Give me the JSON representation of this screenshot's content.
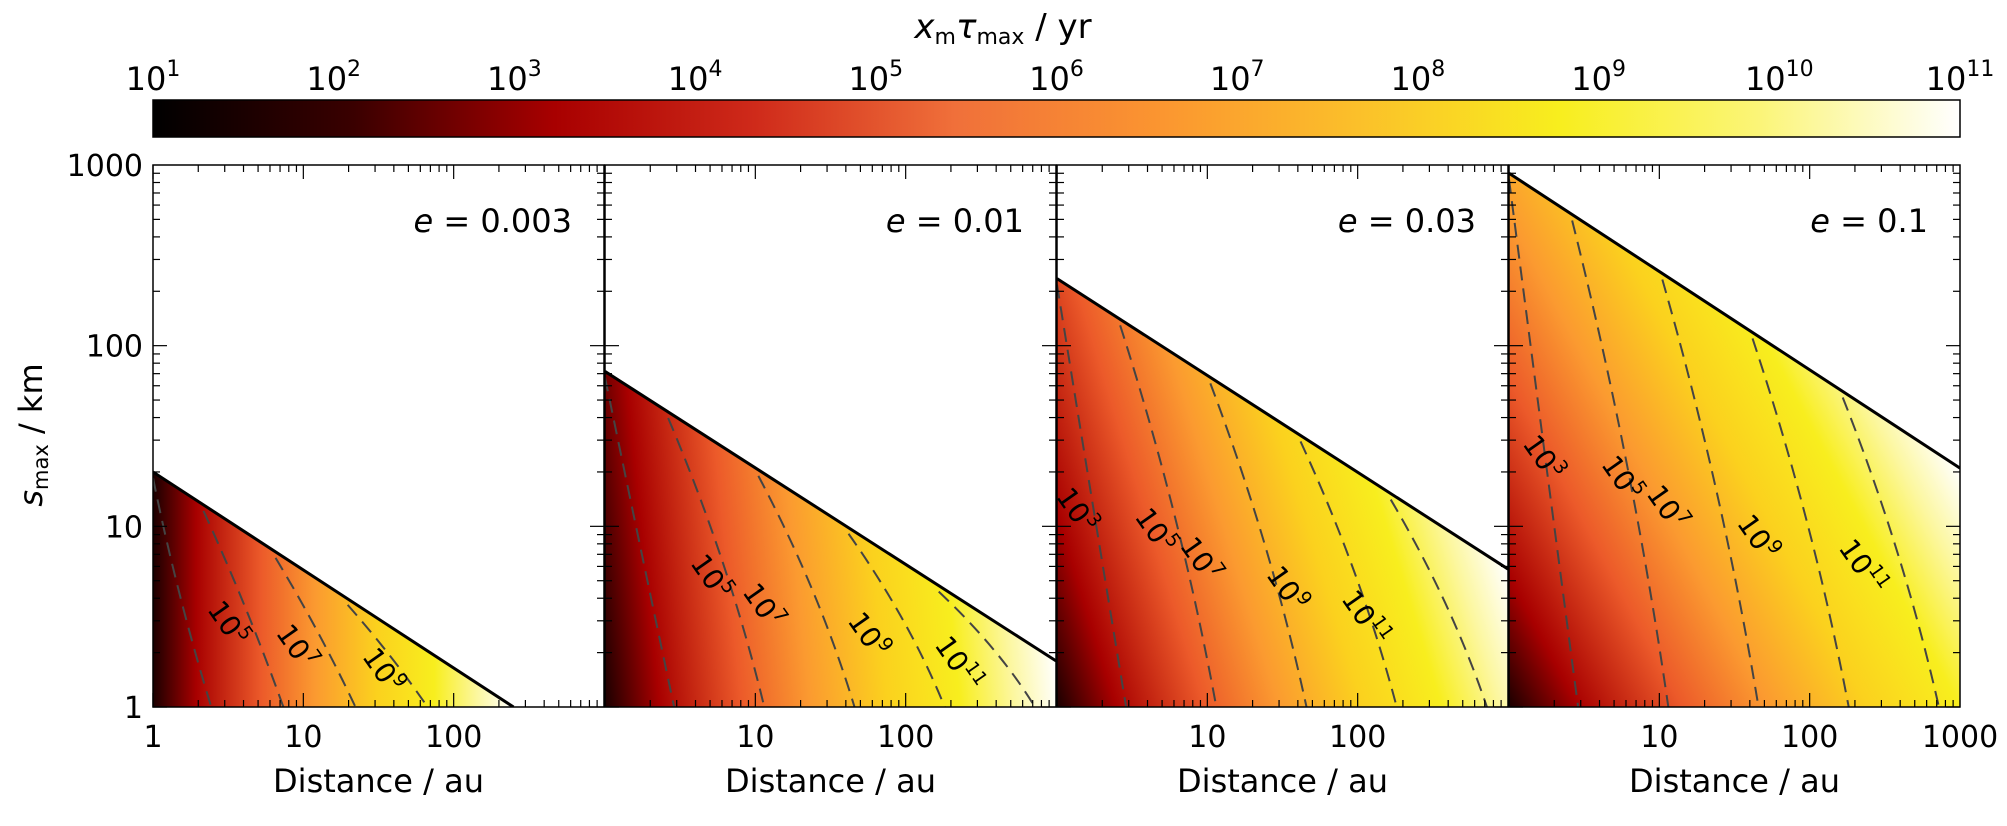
{
  "colorbar": {
    "label_main": "x",
    "label_sub": "m",
    "label_tau": "τ",
    "label_tau_sub": "max",
    "label_units": " / yr",
    "scale": "log",
    "range": [
      10.0,
      100000000000.0
    ],
    "tick_exponents": [
      1,
      2,
      3,
      4,
      5,
      6,
      7,
      8,
      9,
      10,
      11
    ],
    "tick_base": "10",
    "colormap": [
      "#000000",
      "#3a0000",
      "#a80000",
      "#cf2a1a",
      "#f0703a",
      "#fb9530",
      "#fbc02a",
      "#f8ee1e",
      "#fbf578",
      "#ffffff"
    ]
  },
  "chart_data": [
    {
      "type": "heatmap",
      "panel_label_var": "e",
      "panel_label_value": " = 0.003",
      "e": 0.003,
      "xlabel": "Distance / au",
      "xscale": "log",
      "yscale": "log",
      "xlim": [
        1,
        1000
      ],
      "ylim": [
        1,
        1000
      ],
      "x_tick_labels": [
        "1",
        "10",
        "100"
      ],
      "boundary_line": {
        "x": [
          1,
          250
        ],
        "y": [
          20,
          1
        ]
      },
      "contours": [
        {
          "exp": "3",
          "label_x": null
        },
        {
          "exp": "5",
          "label_x": 2.8
        },
        {
          "exp": "7",
          "label_x": 8
        },
        {
          "exp": "9",
          "label_x": 30
        }
      ]
    },
    {
      "type": "heatmap",
      "panel_label_var": "e",
      "panel_label_value": " = 0.01",
      "e": 0.01,
      "xlabel": "Distance / au",
      "xscale": "log",
      "yscale": "log",
      "xlim": [
        1,
        1000
      ],
      "ylim": [
        1,
        1000
      ],
      "x_tick_labels": [
        "10",
        "100"
      ],
      "boundary_line": {
        "x": [
          1,
          1000
        ],
        "y": [
          72,
          1.8
        ]
      },
      "contours": [
        {
          "exp": "3",
          "label_x": null
        },
        {
          "exp": "5",
          "label_x": 4.5
        },
        {
          "exp": "7",
          "label_x": 10
        },
        {
          "exp": "9",
          "label_x": 50
        },
        {
          "exp": "11",
          "label_x": 200
        }
      ]
    },
    {
      "type": "heatmap",
      "panel_label_var": "e",
      "panel_label_value": " = 0.03",
      "e": 0.03,
      "xlabel": "Distance / au",
      "xscale": "log",
      "yscale": "log",
      "xlim": [
        1,
        1000
      ],
      "ylim": [
        1,
        1000
      ],
      "x_tick_labels": [
        "10",
        "100"
      ],
      "boundary_line": {
        "x": [
          1,
          1000
        ],
        "y": [
          235,
          5.8
        ]
      },
      "contours": [
        {
          "exp": "3",
          "label_x": 1.2
        },
        {
          "exp": "5",
          "label_x": 4
        },
        {
          "exp": "7",
          "label_x": 8
        },
        {
          "exp": "9",
          "label_x": 30
        },
        {
          "exp": "11",
          "label_x": 100
        }
      ]
    },
    {
      "type": "heatmap",
      "panel_label_var": "e",
      "panel_label_value": " = 0.1",
      "e": 0.1,
      "xlabel": "Distance / au",
      "xscale": "log",
      "yscale": "log",
      "xlim": [
        1,
        1000
      ],
      "ylim": [
        1,
        1000
      ],
      "x_tick_labels": [
        "10",
        "100",
        "1000"
      ],
      "boundary_line": {
        "x": [
          1,
          1000
        ],
        "y": [
          900,
          21
        ]
      },
      "contours": [
        {
          "exp": "3",
          "label_x": 1.5
        },
        {
          "exp": "5",
          "label_x": 5
        },
        {
          "exp": "7",
          "label_x": 10
        },
        {
          "exp": "9",
          "label_x": 40
        },
        {
          "exp": "11",
          "label_x": 200
        }
      ]
    }
  ],
  "y_axis": {
    "label_main": "s",
    "label_sub": "max",
    "label_units": " / km",
    "tick_labels": [
      "1000",
      "100",
      "10",
      "1"
    ]
  }
}
